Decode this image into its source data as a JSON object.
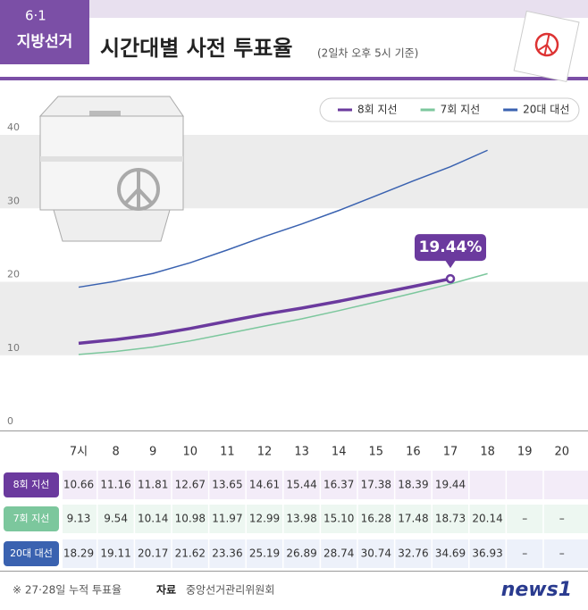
{
  "header": {
    "badge_top": "6·1",
    "badge_bottom": "지방선거",
    "title": "시간대별 사전 투표율",
    "subtitle": "(2일차 오후 5시 기준)"
  },
  "chart_data": {
    "type": "line",
    "categories": [
      "7시",
      "8",
      "9",
      "10",
      "11",
      "12",
      "13",
      "14",
      "15",
      "16",
      "17",
      "18",
      "19",
      "20"
    ],
    "ylim": [
      0,
      40
    ],
    "yticks": [
      0,
      10,
      20,
      30,
      40
    ],
    "grid": true,
    "legend": "top-right",
    "series": [
      {
        "name": "8회 지선",
        "color": "#6b3a9e",
        "values": [
          10.66,
          11.16,
          11.81,
          12.67,
          13.65,
          14.61,
          15.44,
          16.37,
          17.38,
          18.39,
          19.44,
          null,
          null,
          null
        ]
      },
      {
        "name": "7회 지선",
        "color": "#7cc79d",
        "values": [
          9.13,
          9.54,
          10.14,
          10.98,
          11.97,
          12.99,
          13.98,
          15.1,
          16.28,
          17.48,
          18.73,
          20.14,
          null,
          null
        ],
        "value_labels": [
          "9.13",
          "9.54",
          "10.14",
          "10.98",
          "11.97",
          "12.99",
          "13.98",
          "15.10",
          "16.28",
          "17.48",
          "18.73",
          "20.14",
          "–",
          "–"
        ]
      },
      {
        "name": "20대 대선",
        "color": "#3a62b0",
        "values": [
          18.29,
          19.11,
          20.17,
          21.62,
          23.36,
          25.19,
          26.89,
          28.74,
          30.74,
          32.76,
          34.69,
          36.93,
          null,
          null
        ],
        "value_labels": [
          "18.29",
          "19.11",
          "20.17",
          "21.62",
          "23.36",
          "25.19",
          "26.89",
          "28.74",
          "30.74",
          "32.76",
          "34.69",
          "36.93",
          "–",
          "–"
        ]
      }
    ],
    "annotation": "19.44%"
  },
  "footer": {
    "note": "※ 27·28일 누적 투표율",
    "source_label": "자료",
    "source": "중앙선거관리위원회",
    "logo": "news1"
  }
}
